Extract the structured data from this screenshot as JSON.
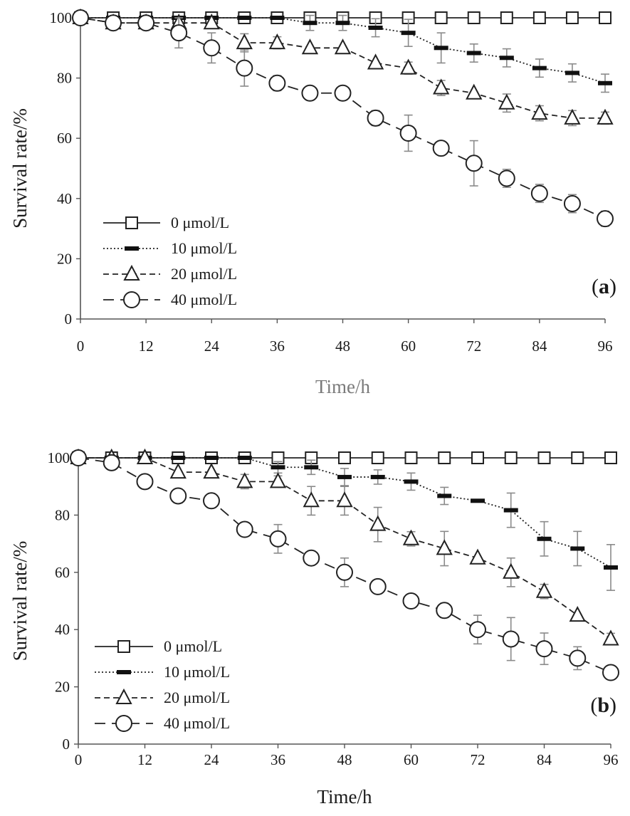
{
  "chart_data": [
    {
      "type": "line",
      "panel_label": {
        "open": "(",
        "letter": "a",
        "close": ")"
      },
      "xlabel": "Time/h",
      "ylabel": "Survival rate/%",
      "xlim": [
        0,
        96
      ],
      "ylim": [
        0,
        100
      ],
      "xticks": [
        0,
        12,
        24,
        36,
        48,
        60,
        72,
        84,
        96
      ],
      "yticks": [
        0,
        20,
        40,
        60,
        80,
        100
      ],
      "grid": false,
      "legend_position": "lower-left",
      "x": [
        0,
        6,
        12,
        18,
        24,
        30,
        36,
        42,
        48,
        54,
        60,
        66,
        72,
        78,
        84,
        90,
        96
      ],
      "series": [
        {
          "name": "0 μmol/L",
          "marker": "square",
          "line": "solid",
          "values": [
            100,
            100,
            100,
            100,
            100,
            100,
            100,
            100,
            100,
            100,
            100,
            100,
            100,
            100,
            100,
            100,
            100
          ],
          "errors": [
            0,
            0,
            0,
            0,
            0,
            0,
            0,
            0,
            0,
            0,
            0,
            0,
            0,
            0,
            0,
            0,
            0
          ]
        },
        {
          "name": "10 μmol/L",
          "marker": "dash",
          "line": "dotted",
          "values": [
            100,
            100,
            100,
            100,
            100,
            100,
            100,
            98.3,
            98.3,
            96.7,
            95,
            90,
            88.3,
            86.7,
            83.3,
            81.7,
            78.3
          ],
          "errors": [
            0,
            0,
            0,
            0,
            0,
            0,
            0,
            2.5,
            2.5,
            3,
            4.5,
            5,
            3,
            3,
            3,
            3,
            3
          ]
        },
        {
          "name": "20 μmol/L",
          "marker": "triangle",
          "line": "dashed",
          "values": [
            100,
            98.3,
            98.3,
            98.3,
            98.3,
            91.7,
            91.7,
            90,
            90,
            85,
            83.3,
            76.7,
            75,
            71.7,
            68.3,
            66.7,
            66.7
          ],
          "errors": [
            0,
            0,
            0,
            0,
            0,
            3,
            2,
            0,
            0,
            0,
            2,
            2.5,
            0,
            3,
            2.5,
            2.5,
            2
          ]
        },
        {
          "name": "40 μmol/L",
          "marker": "circle",
          "line": "long-dashed",
          "values": [
            100,
            98.3,
            98.3,
            95,
            90,
            83.3,
            78.3,
            75,
            75,
            66.7,
            61.7,
            56.7,
            51.7,
            46.7,
            41.7,
            38.3,
            33.3
          ],
          "errors": [
            0,
            0,
            0,
            5,
            5,
            6,
            2.5,
            0,
            0,
            2.5,
            6,
            2,
            7.5,
            3,
            3,
            3,
            2.5
          ]
        }
      ]
    },
    {
      "type": "line",
      "panel_label": {
        "open": "(",
        "letter": "b",
        "close": ")"
      },
      "xlabel": "Time/h",
      "ylabel": "Survival rate/%",
      "xlim": [
        0,
        96
      ],
      "ylim": [
        0,
        100
      ],
      "xticks": [
        0,
        12,
        24,
        36,
        48,
        60,
        72,
        84,
        96
      ],
      "yticks": [
        0,
        20,
        40,
        60,
        80,
        100
      ],
      "grid": false,
      "legend_position": "lower-left",
      "x": [
        0,
        6,
        12,
        18,
        24,
        30,
        36,
        42,
        48,
        54,
        60,
        66,
        72,
        78,
        84,
        90,
        96
      ],
      "series": [
        {
          "name": "0 μmol/L",
          "marker": "square",
          "line": "solid",
          "values": [
            100,
            100,
            100,
            100,
            100,
            100,
            100,
            100,
            100,
            100,
            100,
            100,
            100,
            100,
            100,
            100,
            100
          ],
          "errors": [
            0,
            0,
            0,
            0,
            0,
            0,
            0,
            0,
            0,
            0,
            0,
            0,
            0,
            0,
            0,
            0,
            0
          ]
        },
        {
          "name": "10 μmol/L",
          "marker": "dash",
          "line": "dotted",
          "values": [
            100,
            100,
            100,
            100,
            100,
            100,
            96.7,
            96.7,
            93.3,
            93.3,
            91.7,
            86.7,
            85,
            81.7,
            71.7,
            68.3,
            61.7
          ],
          "errors": [
            0,
            0,
            0,
            0,
            0,
            0,
            2,
            2.5,
            3,
            2.5,
            3,
            3,
            0,
            6,
            6,
            6,
            8
          ]
        },
        {
          "name": "20 μmol/L",
          "marker": "triangle",
          "line": "dashed",
          "values": [
            100,
            100,
            100,
            95,
            95,
            91.7,
            91.7,
            85,
            85,
            76.7,
            71.7,
            68.3,
            65,
            60,
            53.3,
            45,
            36.7
          ],
          "errors": [
            0,
            0,
            0,
            0,
            0,
            2.5,
            2,
            5,
            5,
            6,
            2.5,
            6,
            0,
            5,
            2.5,
            0,
            2
          ]
        },
        {
          "name": "40 μmol/L",
          "marker": "circle",
          "line": "long-dashed",
          "values": [
            100,
            98.3,
            91.7,
            86.7,
            85,
            75,
            71.7,
            65,
            60,
            55,
            50,
            46.7,
            40,
            36.7,
            33.3,
            30,
            25
          ],
          "errors": [
            0,
            0,
            0,
            0,
            0,
            0,
            5,
            0,
            5,
            0,
            0,
            2.5,
            5,
            7.5,
            5.5,
            4,
            0
          ]
        }
      ]
    }
  ]
}
